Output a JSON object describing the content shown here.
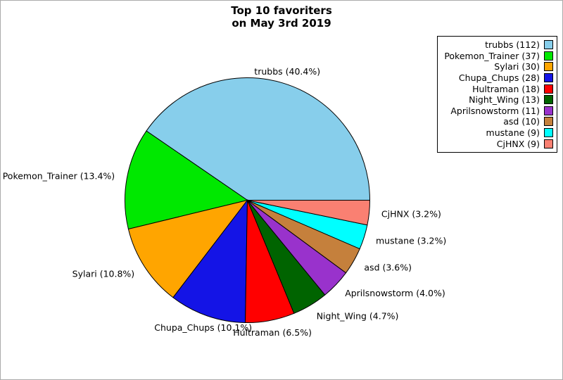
{
  "figure": {
    "title_line1": "Top 10 favoriters",
    "title_line2": "on May 3rd 2019"
  },
  "chart_data": {
    "type": "pie",
    "title": "Top 10 favoriters on May 3rd 2019",
    "categories": [
      "trubbs",
      "Pokemon_Trainer",
      "Sylari",
      "Chupa_Chups",
      "Hultraman",
      "Night_Wing",
      "Aprilsnowstorm",
      "asd",
      "mustane",
      "CjHNX"
    ],
    "values": [
      112,
      37,
      30,
      28,
      18,
      13,
      11,
      10,
      9,
      9
    ],
    "percents": [
      40.4,
      13.4,
      10.8,
      10.1,
      6.5,
      4.7,
      4.0,
      3.6,
      3.2,
      3.2
    ],
    "slice_labels": [
      "trubbs (40.4%)",
      "Pokemon_Trainer (13.4%)",
      "Sylari (10.8%)",
      "Chupa_Chups (10.1%)",
      "Hultraman (6.5%)",
      "Night_Wing (4.7%)",
      "Aprilsnowstorm (4.0%)",
      "asd (3.6%)",
      "mustane (3.2%)",
      "CjHNX (3.2%)"
    ],
    "legend_labels": [
      "trubbs (112)",
      "Pokemon_Trainer (37)",
      "Sylari (30)",
      "Chupa_Chups (28)",
      "Hultraman (18)",
      "Night_Wing (13)",
      "Aprilsnowstorm (11)",
      "asd (10)",
      "mustane (9)",
      "CjHNX (9)"
    ],
    "colors": [
      "#87CEEB",
      "#00E800",
      "#FFA500",
      "#1414E6",
      "#FF0000",
      "#006400",
      "#9932CC",
      "#C5803C",
      "#00FFFF",
      "#FA8072"
    ],
    "edge_color": "#000000",
    "background": "#ffffff",
    "start_angle": 0,
    "direction": "counterclockwise",
    "label_distance": 1.1,
    "legend_position": "upper right",
    "legend_marker_side": "right"
  }
}
